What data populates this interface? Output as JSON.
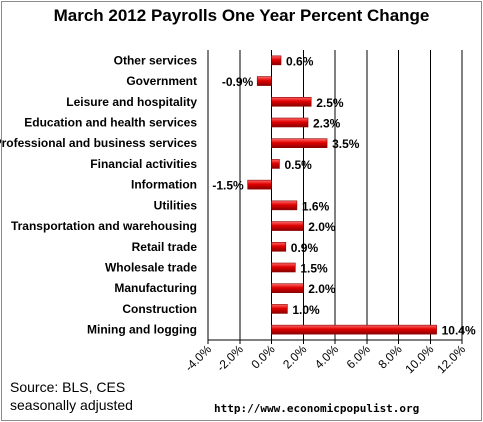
{
  "title": "March 2012 Payrolls One Year Percent Change",
  "source": {
    "line1": "Source:  BLS, CES",
    "line2": "seasonally adjusted"
  },
  "url": "http://www.economicpopulist.org",
  "colors": {
    "bar_dark": "#8b0000",
    "bar_light": "#ff6a6a",
    "bar_mid": "#e00000",
    "grid": "#000000"
  },
  "chart_data": {
    "type": "bar",
    "orientation": "horizontal",
    "title": "March 2012 Payrolls One Year Percent Change",
    "categories": [
      "Other services",
      "Government",
      "Leisure and hospitality",
      "Education and health services",
      "Professional and business services",
      "Financial activities",
      "Information",
      "Utilities",
      "Transportation and warehousing",
      "Retail trade",
      "Wholesale trade",
      "Manufacturing",
      "Construction",
      "Mining and logging"
    ],
    "values": [
      0.6,
      -0.9,
      2.5,
      2.3,
      3.5,
      0.5,
      -1.5,
      1.6,
      2.0,
      0.9,
      1.5,
      2.0,
      1.0,
      10.4
    ],
    "value_labels": [
      "0.6%",
      "-0.9%",
      "2.5%",
      "2.3%",
      "3.5%",
      "0.5%",
      "-1.5%",
      "1.6%",
      "2.0%",
      "0.9%",
      "1.5%",
      "2.0%",
      "1.0%",
      "10.4%"
    ],
    "xlim": [
      -4,
      12
    ],
    "xticks": [
      -4,
      -2,
      0,
      2,
      4,
      6,
      8,
      10,
      12
    ],
    "xtick_labels": [
      "-4.0%",
      "-2.0%",
      "0.0%",
      "2.0%",
      "4.0%",
      "6.0%",
      "8.0%",
      "10.0%",
      "12.0%"
    ],
    "grid": "vertical",
    "legend": "none"
  }
}
